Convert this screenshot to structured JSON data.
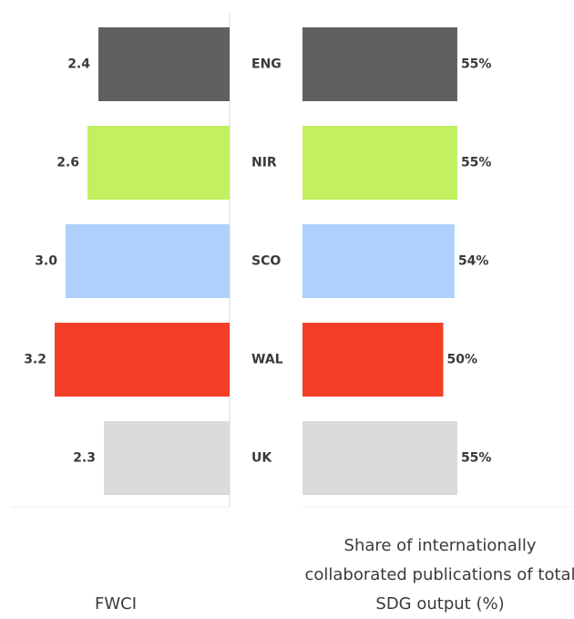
{
  "chart_data": [
    {
      "type": "bar",
      "orientation": "horizontal",
      "direction": "left",
      "xlabel": "FWCI",
      "categories": [
        "ENG",
        "NIR",
        "SCO",
        "WAL",
        "UK"
      ],
      "values": [
        2.4,
        2.6,
        3.0,
        3.2,
        2.3
      ],
      "value_labels": [
        "2.4",
        "2.6",
        "3.0",
        "3.2",
        "2.3"
      ],
      "colors": [
        "#5f6062",
        "#c2f060",
        "#aed0fb",
        "#f53e26",
        "#dbdbdb"
      ],
      "xlim": [
        0,
        4
      ]
    },
    {
      "type": "bar",
      "orientation": "horizontal",
      "direction": "right",
      "xlabel": "Share of internationally collaborated publications of total SDG output (%)",
      "values": [
        55,
        55,
        54,
        50,
        55
      ],
      "value_labels": [
        "55%",
        "55%",
        "54%",
        "50%",
        "55%"
      ],
      "colors": [
        "#5f6062",
        "#c2f060",
        "#aed0fb",
        "#f53e26",
        "#dbdbdb"
      ],
      "xlim": [
        0,
        100
      ]
    }
  ]
}
